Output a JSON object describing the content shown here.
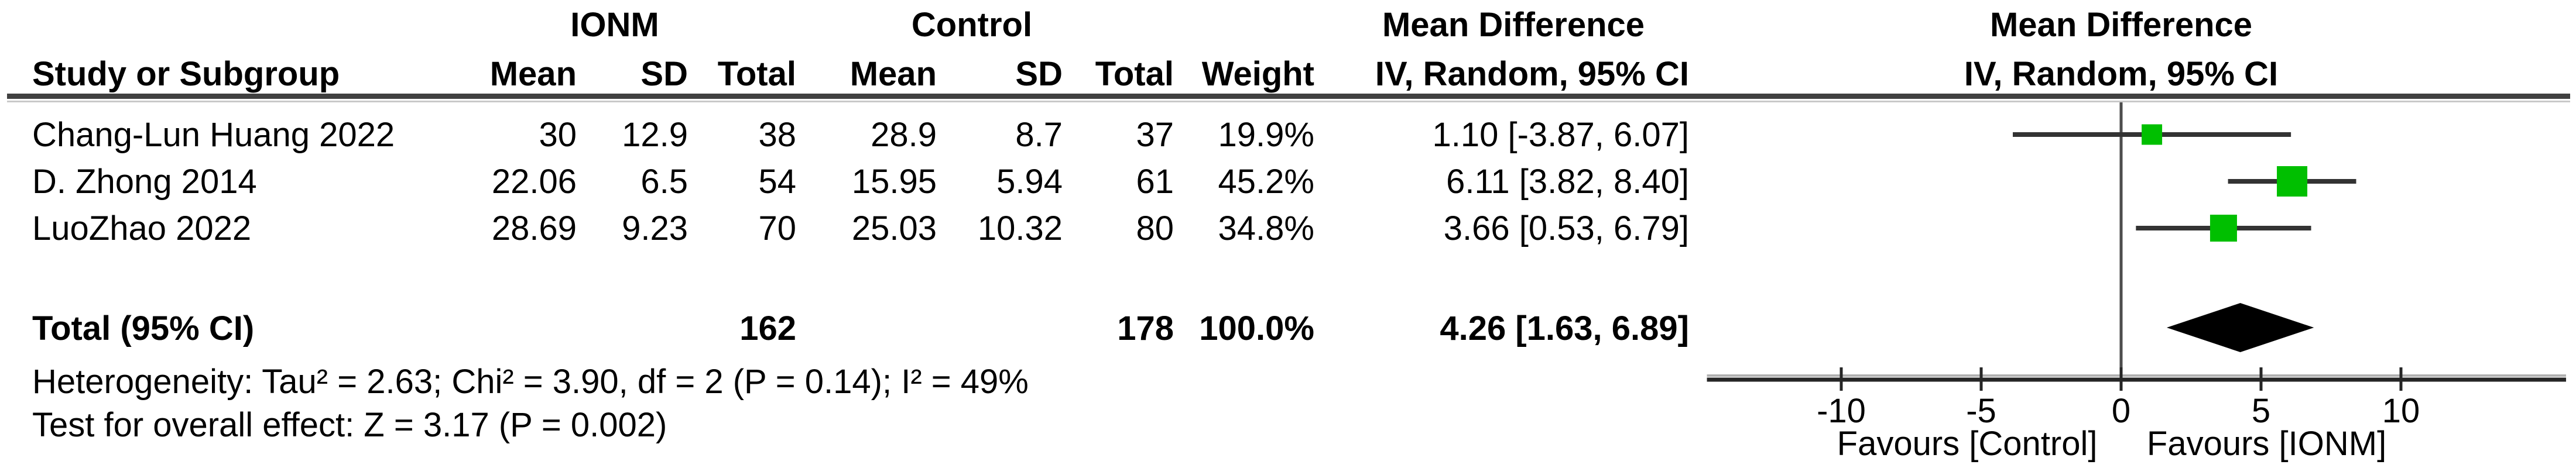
{
  "colors": {
    "square_green": "#00BF00",
    "ci_line": "#333333",
    "diamond": "#000000",
    "axis": "#262626",
    "zero_line": "#4d4d4d",
    "rule": "#404040"
  },
  "group_headers": {
    "ionm": "IONM",
    "control": "Control",
    "mean_difference_table": "Mean Difference",
    "mean_difference_plot": "Mean Difference",
    "iv_random_plot": "IV, Random, 95% CI"
  },
  "column_headers": {
    "study": "Study or Subgroup",
    "ionm_mean": "Mean",
    "ionm_sd": "SD",
    "ionm_total": "Total",
    "ctrl_mean": "Mean",
    "ctrl_sd": "SD",
    "ctrl_total": "Total",
    "weight": "Weight",
    "md_ci": "IV, Random, 95% CI"
  },
  "rows": [
    {
      "study": "Chang-Lun Huang 2022",
      "ionm_mean": "30",
      "ionm_sd": "12.9",
      "ionm_total": "38",
      "ctrl_mean": "28.9",
      "ctrl_sd": "8.7",
      "ctrl_total": "37",
      "weight": "19.9%",
      "md_ci": "1.10 [-3.87, 6.07]"
    },
    {
      "study": "D. Zhong 2014",
      "ionm_mean": "22.06",
      "ionm_sd": "6.5",
      "ionm_total": "54",
      "ctrl_mean": "15.95",
      "ctrl_sd": "5.94",
      "ctrl_total": "61",
      "weight": "45.2%",
      "md_ci": "6.11 [3.82, 8.40]"
    },
    {
      "study": "LuoZhao 2022",
      "ionm_mean": "28.69",
      "ionm_sd": "9.23",
      "ionm_total": "70",
      "ctrl_mean": "25.03",
      "ctrl_sd": "10.32",
      "ctrl_total": "80",
      "weight": "34.8%",
      "md_ci": "3.66 [0.53, 6.79]"
    }
  ],
  "total_row": {
    "label": "Total (95% CI)",
    "ionm_total": "162",
    "ctrl_total": "178",
    "weight": "100.0%",
    "md_ci": "4.26 [1.63, 6.89]"
  },
  "footnotes": {
    "heterogeneity": "Heterogeneity: Tau² = 2.63; Chi² = 3.90, df = 2 (P = 0.14); I² = 49%",
    "overall_effect": "Test for overall effect: Z = 3.17 (P = 0.002)"
  },
  "axis": {
    "favours_left": "Favours [Control]",
    "favours_right": "Favours [IONM]"
  },
  "chart_data": {
    "type": "forest",
    "title": "Mean Difference, IV, Random, 95% CI",
    "studies": [
      {
        "name": "Chang-Lun Huang 2022",
        "md": 1.1,
        "ci_low": -3.87,
        "ci_high": 6.07,
        "weight_pct": 19.9
      },
      {
        "name": "D. Zhong 2014",
        "md": 6.11,
        "ci_low": 3.82,
        "ci_high": 8.4,
        "weight_pct": 45.2
      },
      {
        "name": "LuoZhao 2022",
        "md": 3.66,
        "ci_low": 0.53,
        "ci_high": 6.79,
        "weight_pct": 34.8
      }
    ],
    "total": {
      "md": 4.26,
      "ci_low": 1.63,
      "ci_high": 6.89,
      "weight_pct": 100.0
    },
    "xticks": [
      -10,
      -5,
      0,
      5,
      10
    ],
    "xlim": [
      -14.8,
      15.9
    ],
    "zero_line": 0,
    "favours_left": "Favours [Control]",
    "favours_right": "Favours [IONM]"
  }
}
